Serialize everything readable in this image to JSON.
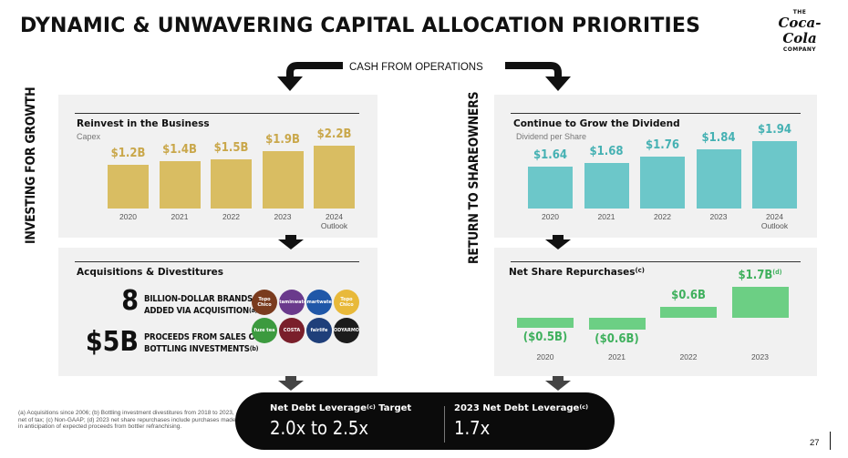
{
  "title": "DYNAMIC & UNWAVERING CAPITAL ALLOCATION PRIORITIES",
  "logo": {
    "top": "THE",
    "script": "Coca-Cola",
    "bottom": "COMPANY"
  },
  "cash_from_operations": "CASH FROM OPERATIONS",
  "left_side_label": "INVESTING FOR GROWTH",
  "right_side_label": "RETURN TO SHAREOWNERS",
  "colors": {
    "gold": "#d9bd62",
    "teal": "#6cc7c9",
    "green": "#6ccf84",
    "panel": "#f1f1f1"
  },
  "chart_data": [
    {
      "type": "bar",
      "title": "Reinvest in the Business",
      "subtitle": "Capex",
      "categories": [
        "2020",
        "2021",
        "2022",
        "2023",
        "2024"
      ],
      "category_notes": [
        "",
        "",
        "",
        "",
        "Outlook"
      ],
      "values": [
        1.2,
        1.4,
        1.5,
        1.9,
        2.2
      ],
      "labels": [
        "$1.2B",
        "$1.4B",
        "$1.5B",
        "$1.9B",
        "$2.2B"
      ],
      "ylim": [
        0,
        2.2
      ]
    },
    {
      "type": "bar",
      "title": "Continue to Grow the Dividend",
      "subtitle": "Dividend per Share",
      "categories": [
        "2020",
        "2021",
        "2022",
        "2023",
        "2024"
      ],
      "category_notes": [
        "",
        "",
        "",
        "",
        "Outlook"
      ],
      "values": [
        1.64,
        1.68,
        1.76,
        1.84,
        1.94
      ],
      "labels": [
        "$1.64",
        "$1.68",
        "$1.76",
        "$1.84",
        "$1.94"
      ]
    },
    {
      "type": "bar",
      "title": "Net Share Repurchases",
      "title_sup": "(c)",
      "categories": [
        "2020",
        "2021",
        "2022",
        "2023"
      ],
      "values": [
        -0.5,
        -0.6,
        0.6,
        1.7
      ],
      "labels": [
        "($0.5B)",
        "($0.6B)",
        "$0.6B",
        "$1.7B"
      ],
      "label_sups": [
        "",
        "",
        "",
        "(d)"
      ]
    }
  ],
  "acquisitions": {
    "title": "Acquisitions & Divestitures",
    "stat1_value": "8",
    "stat1_line1": "BILLION-DOLLAR BRANDS",
    "stat1_line2": "ADDED VIA ACQUISITION",
    "stat1_sup": "(a)",
    "stat2_value": "$5B",
    "stat2_line1": "PROCEEDS FROM SALES OF",
    "stat2_line2": "BOTTLING INVESTMENTS",
    "stat2_sup": "(b)",
    "brands": [
      {
        "name": "Topo Chico",
        "color": "#7a3b1e"
      },
      {
        "name": "vitaminwater",
        "color": "#6a3a8c"
      },
      {
        "name": "smartwater",
        "color": "#1f57a8"
      },
      {
        "name": "Topo Chico",
        "color": "#e8b93a"
      },
      {
        "name": "fuze tea",
        "color": "#3c9a3f"
      },
      {
        "name": "COSTA",
        "color": "#7a1f2b"
      },
      {
        "name": "fairlife",
        "color": "#1f3f7a"
      },
      {
        "name": "BODYARMOR",
        "color": "#1c1c1c"
      }
    ]
  },
  "leverage": {
    "target_label": "Net Debt Leverage",
    "target_sup": "(c)",
    "target_suffix": " Target",
    "target_value": "2.0x to 2.5x",
    "actual_label": "2023 Net Debt Leverage",
    "actual_sup": "(c)",
    "actual_value": "1.7x"
  },
  "footnote": "(a) Acquisitions since 2006; (b) Bottling investment divestitures from 2018 to 2023, net of tax; (c) Non-GAAP; (d) 2023 net share repurchases include purchases made in anticipation of expected proceeds from bottler refranchising.",
  "page_number": "27"
}
